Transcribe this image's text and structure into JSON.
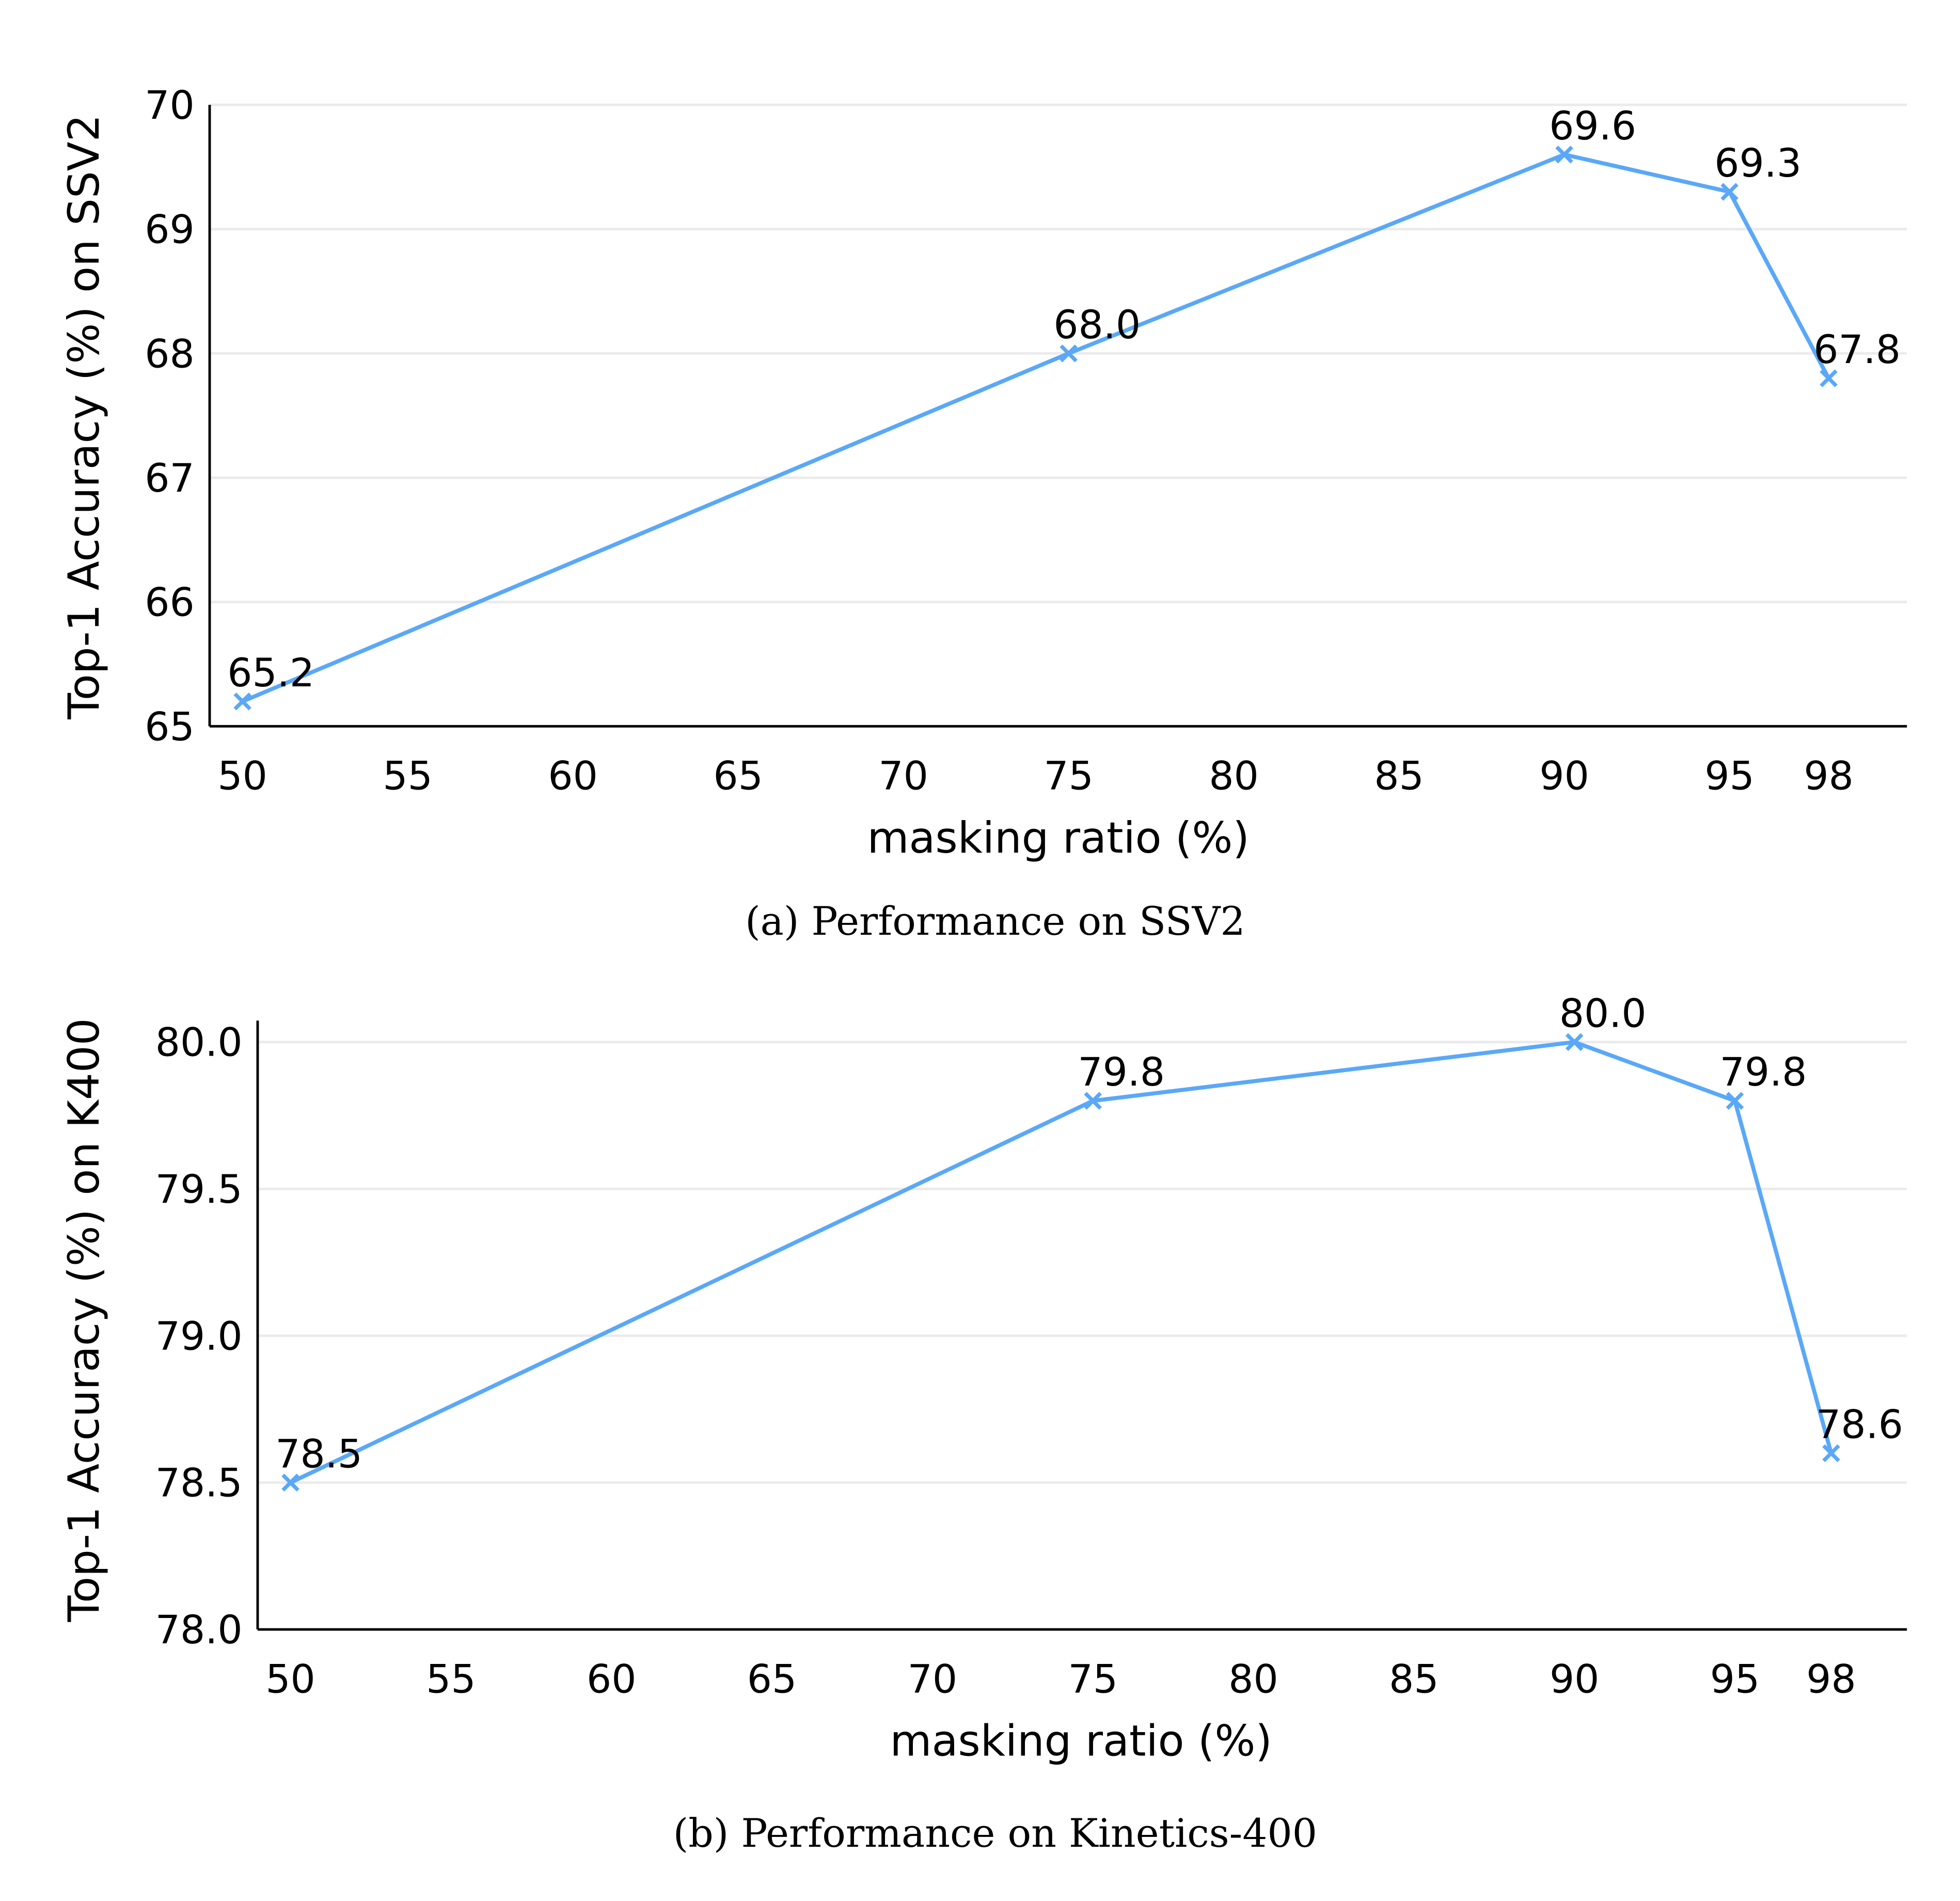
{
  "chart_data": [
    {
      "type": "line",
      "x": [
        50,
        75,
        90,
        95,
        98
      ],
      "series": [
        {
          "values": [
            65.2,
            68.0,
            69.6,
            69.3,
            67.8
          ]
        }
      ],
      "data_labels": [
        "65.2",
        "68.0",
        "69.6",
        "69.3",
        "67.8"
      ],
      "xlabel": "masking ratio (%)",
      "ylabel": "Top-1 Accuracy (%) on SSV2",
      "xticks": [
        "50",
        "55",
        "60",
        "65",
        "70",
        "75",
        "80",
        "85",
        "90",
        "95",
        "98"
      ],
      "yticks": [
        "65",
        "66",
        "67",
        "68",
        "69",
        "70"
      ],
      "xlim": [
        49,
        101.5
      ],
      "ylim": [
        65,
        70.05
      ],
      "grid": "horizontal",
      "marker": "x",
      "color": "#5aa8f7",
      "caption": "(a) Performance on SSV2"
    },
    {
      "type": "line",
      "x": [
        50,
        75,
        90,
        95,
        98
      ],
      "series": [
        {
          "values": [
            78.5,
            79.8,
            80.0,
            79.8,
            78.6
          ]
        }
      ],
      "data_labels": [
        "78.5",
        "79.8",
        "80.0",
        "79.8",
        "78.6"
      ],
      "xlabel": "masking ratio (%)",
      "ylabel": "Top-1 Accuracy (%) on K400",
      "xticks": [
        "50",
        "55",
        "60",
        "65",
        "70",
        "75",
        "80",
        "85",
        "90",
        "95",
        "98"
      ],
      "yticks": [
        "78.0",
        "78.5",
        "79.0",
        "79.5",
        "80.0"
      ],
      "xlim": [
        49,
        101.4
      ],
      "ylim": [
        78.0,
        80.07
      ],
      "grid": "horizontal",
      "marker": "x",
      "color": "#5aa8f7",
      "caption": "(b) Performance on Kinetics-400"
    }
  ]
}
